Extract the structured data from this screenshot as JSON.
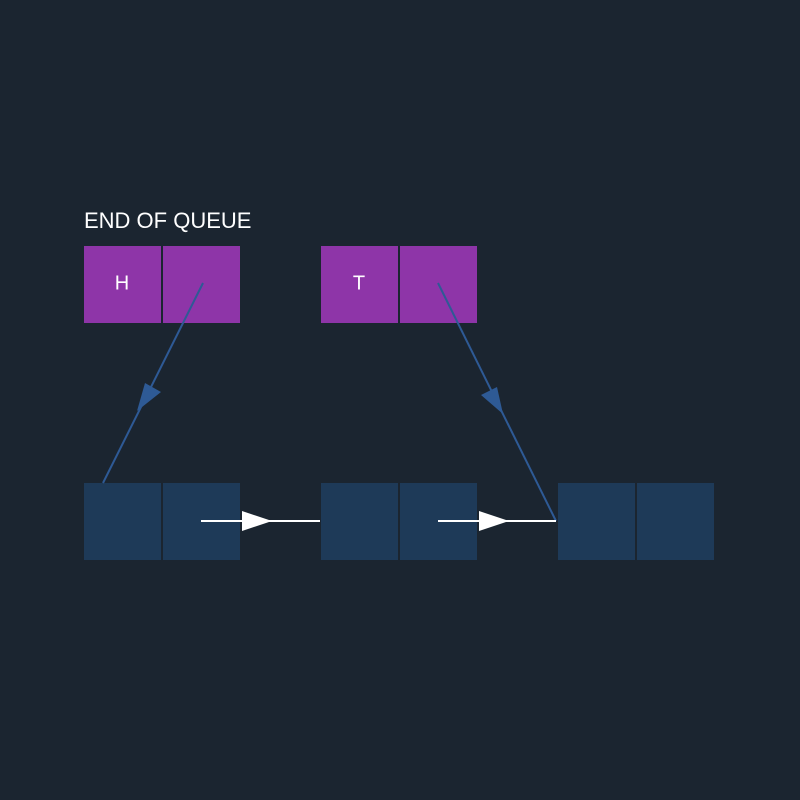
{
  "title": "END OF QUEUE",
  "pointers": [
    {
      "label": "H"
    },
    {
      "label": "T"
    }
  ]
}
